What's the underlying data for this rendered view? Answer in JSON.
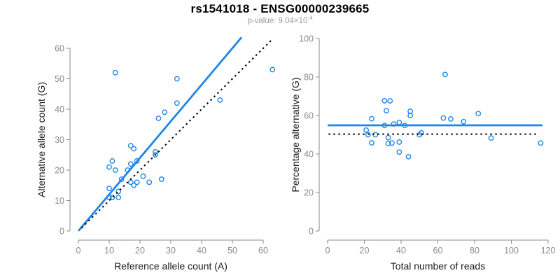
{
  "header": {
    "title": "rs1541018 - ENSG00000239665",
    "pvalue_prefix": "p-value: ",
    "pvalue_base": "9.04×10",
    "pvalue_exponent": "-4"
  },
  "colors": {
    "accent_blue": "#1f86e8",
    "dotted_black": "#000000",
    "axis_gray": "#8a8a8a",
    "axis_title_dark": "#1a1a1a",
    "subtitle_gray": "#9a9a9a"
  },
  "chart_data": [
    {
      "id": "ref-vs-alt-scatter",
      "type": "scatter",
      "title": "",
      "xlabel": "Reference allele count (A)",
      "ylabel": "Alternative allele count (G)",
      "xticks": [
        0,
        10,
        20,
        30,
        40,
        50,
        60
      ],
      "yticks": [
        0,
        10,
        20,
        30,
        40,
        50,
        60
      ],
      "xlim": [
        0,
        63.5
      ],
      "ylim": [
        0,
        63.5
      ],
      "grid": false,
      "legend": "none",
      "marker": "open-circle",
      "points": [
        [
          10,
          11
        ],
        [
          11,
          11
        ],
        [
          13,
          11
        ],
        [
          13,
          13
        ],
        [
          10,
          14
        ],
        [
          18,
          15
        ],
        [
          17,
          16
        ],
        [
          19,
          16
        ],
        [
          23,
          16
        ],
        [
          14,
          17
        ],
        [
          27,
          17
        ],
        [
          21,
          18
        ],
        [
          12,
          20
        ],
        [
          16,
          20
        ],
        [
          10,
          21
        ],
        [
          17,
          22
        ],
        [
          11,
          23
        ],
        [
          19,
          23
        ],
        [
          25,
          25
        ],
        [
          25,
          26
        ],
        [
          18,
          27
        ],
        [
          17,
          28
        ],
        [
          26,
          37
        ],
        [
          28,
          39
        ],
        [
          32,
          42
        ],
        [
          46,
          43
        ],
        [
          32,
          50
        ],
        [
          12,
          52
        ],
        [
          63,
          53
        ]
      ],
      "lines": [
        {
          "role": "fit-line",
          "style": "solid",
          "color_key": "accent_blue",
          "x1": 0.2,
          "y1": 0.25,
          "x2": 52.8,
          "y2": 63.4
        },
        {
          "role": "identity-line",
          "style": "dotted",
          "color_key": "dotted_black",
          "x1": 1,
          "y1": 1,
          "x2": 62.8,
          "y2": 62.8
        }
      ]
    },
    {
      "id": "coverage-vs-percentage-scatter",
      "type": "scatter",
      "title": "",
      "xlabel": "Total number of reads",
      "ylabel": "Percentage alternative (G)",
      "xticks": [
        0,
        20,
        40,
        60,
        80,
        100,
        120
      ],
      "yticks": [
        0,
        20,
        40,
        60,
        80,
        100
      ],
      "xlim": [
        0,
        120
      ],
      "ylim": [
        0,
        100
      ],
      "grid": false,
      "legend": "none",
      "marker": "open-circle",
      "points": [
        [
          21,
          52.4
        ],
        [
          22,
          50
        ],
        [
          24,
          45.8
        ],
        [
          26,
          50
        ],
        [
          24,
          58.3
        ],
        [
          33,
          45.5
        ],
        [
          33,
          48.5
        ],
        [
          35,
          45.7
        ],
        [
          39,
          41
        ],
        [
          31,
          54.8
        ],
        [
          44,
          38.6
        ],
        [
          39,
          46.2
        ],
        [
          32,
          62.5
        ],
        [
          36,
          55.6
        ],
        [
          31,
          67.7
        ],
        [
          39,
          56.4
        ],
        [
          34,
          67.6
        ],
        [
          42,
          54.8
        ],
        [
          50,
          50
        ],
        [
          51,
          51
        ],
        [
          45,
          60
        ],
        [
          45,
          62.2
        ],
        [
          63,
          58.7
        ],
        [
          67,
          58.2
        ],
        [
          74,
          56.8
        ],
        [
          89,
          48.3
        ],
        [
          82,
          61
        ],
        [
          64,
          81.3
        ],
        [
          116,
          45.7
        ]
      ],
      "lines": [
        {
          "role": "fit-line",
          "style": "solid",
          "color_key": "accent_blue",
          "x1": 0.5,
          "y1": 54.9,
          "x2": 116.5,
          "y2": 54.9
        },
        {
          "role": "null-line",
          "style": "dotted",
          "color_key": "dotted_black",
          "x1": 0.5,
          "y1": 50.3,
          "x2": 114,
          "y2": 50.3
        }
      ]
    }
  ]
}
